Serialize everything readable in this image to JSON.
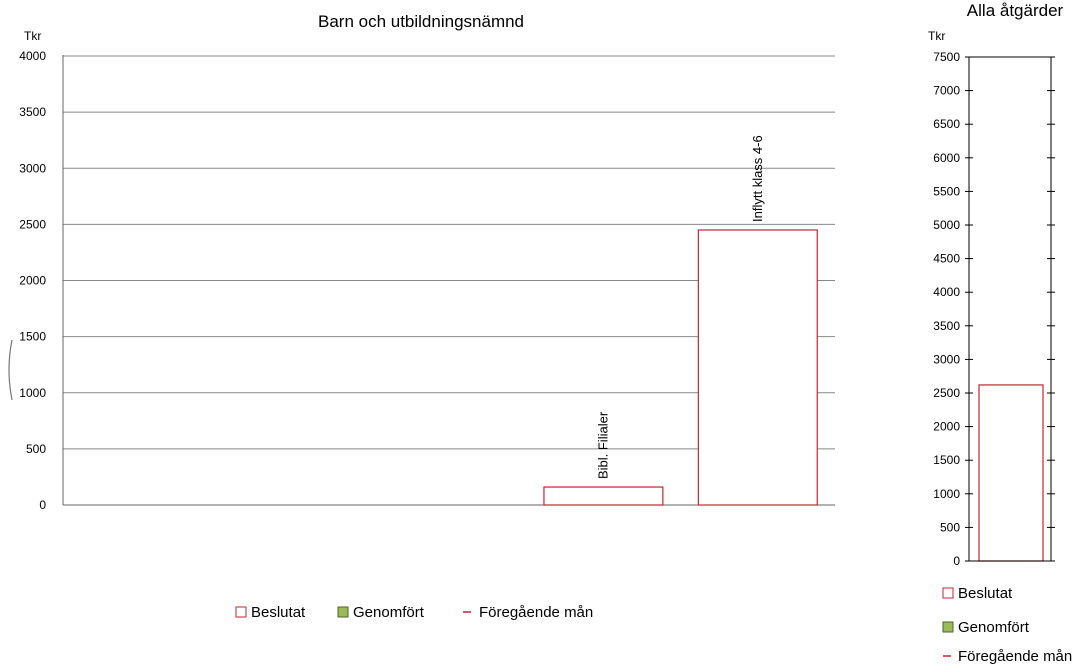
{
  "chart_data": [
    {
      "type": "bar",
      "title": "Barn och utbildningsnämnd",
      "ylabel": "Tkr",
      "ylim": [
        0,
        4000
      ],
      "yticks": [
        "0",
        "500",
        "1000",
        "1500",
        "2000",
        "2500",
        "3000",
        "3500",
        "4000"
      ],
      "grid": true,
      "categories": [
        "",
        "",
        "",
        "Bibl. Filialer",
        "Inflytt klass 4-6"
      ],
      "series": [
        {
          "name": "Beslutat",
          "values": [
            0,
            0,
            0,
            160,
            2450
          ]
        },
        {
          "name": "Genomfört",
          "values": [
            0,
            0,
            0,
            0,
            0
          ]
        }
      ],
      "legend_position": "bottom",
      "legend": [
        "Beslutat",
        "Genomfört",
        "Föregående mån"
      ]
    },
    {
      "type": "bar",
      "title": "Alla åtgärder",
      "ylabel": "Tkr",
      "ylim": [
        0,
        7500
      ],
      "yticks": [
        "0",
        "500",
        "1000",
        "1500",
        "2000",
        "2500",
        "3000",
        "3500",
        "4000",
        "4500",
        "5000",
        "5500",
        "6000",
        "6500",
        "7000",
        "7500"
      ],
      "grid": true,
      "categories": [
        ""
      ],
      "series": [
        {
          "name": "Beslutat",
          "values": [
            2620
          ]
        },
        {
          "name": "Genomfört",
          "values": [
            0
          ]
        }
      ],
      "legend_position": "bottom",
      "legend": [
        "Beslutat",
        "Genomfört",
        "Föregående mån"
      ]
    }
  ],
  "colors": {
    "beslutat": "#c0272d",
    "genomfort_fill": "#9bbb59",
    "genomfort_edge": "#4f6228",
    "foregaende": "#c0272d",
    "grid": "#888888",
    "axis": "#666666"
  }
}
